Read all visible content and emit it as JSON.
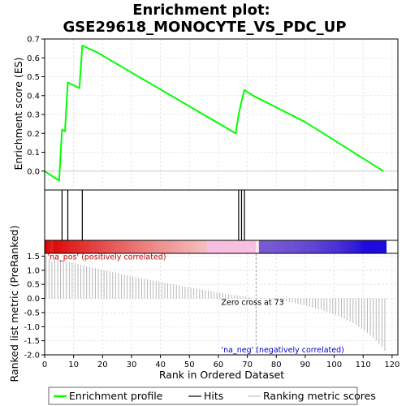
{
  "chart_data": {
    "type": "line",
    "title_line1": "Enrichment plot:",
    "title_line2": "GSE29618_MONOCYTE_VS_PDC_UP",
    "xlabel": "Rank in Ordered Dataset",
    "es_panel": {
      "ylabel": "Enrichment score (ES)",
      "ylim": [
        -0.1,
        0.7
      ],
      "yticks": [
        0.0,
        0.1,
        0.2,
        0.3,
        0.4,
        0.5,
        0.6,
        0.7
      ],
      "ytick_labels": [
        "0.0",
        "0.1",
        "0.2",
        "0.3",
        "0.4",
        "0.5",
        "0.6",
        "0.7"
      ],
      "series_name": "Enrichment profile",
      "color": "#00ff00",
      "x": [
        0,
        5,
        6,
        7,
        8,
        12,
        13,
        18,
        66,
        67,
        68,
        69,
        72,
        90,
        117
      ],
      "y": [
        0.0,
        -0.05,
        0.22,
        0.21,
        0.47,
        0.44,
        0.665,
        0.63,
        0.2,
        0.3,
        0.37,
        0.43,
        0.4,
        0.26,
        0.0
      ]
    },
    "hits": {
      "series_name": "Hits",
      "positions": [
        6,
        8,
        13,
        67,
        68,
        69
      ]
    },
    "metric_panel": {
      "ylabel": "Ranked list metric (PreRanked)",
      "ylim": [
        -2.0,
        1.6
      ],
      "yticks": [
        -2.0,
        -1.5,
        -1.0,
        -0.5,
        0.0,
        0.5,
        1.0,
        1.5
      ],
      "ytick_labels": [
        "-2.0",
        "-1.5",
        "-1.0",
        "-0.5",
        "0.0",
        "0.5",
        "1.0",
        "1.5"
      ],
      "series_name": "Ranking metric scores",
      "n_genes": 118,
      "start_value": 1.5,
      "zero_cross_rank": 73,
      "end_value": -1.85,
      "zero_cross_label": "Zero cross at 73",
      "pos_label": "'na_pos' (positively correlated)",
      "neg_label": "'na_neg' (negatively correlated)",
      "pos_color": "#cc0000",
      "neg_color": "#0000cc"
    },
    "xlim": [
      0,
      122
    ],
    "xticks": [
      0,
      10,
      20,
      30,
      40,
      50,
      60,
      70,
      80,
      90,
      100,
      110,
      120
    ],
    "xtick_labels": [
      "0",
      "10",
      "20",
      "30",
      "40",
      "50",
      "60",
      "70",
      "80",
      "90",
      "100",
      "110",
      "120"
    ],
    "grid": true,
    "legend_placement": "bottom"
  }
}
